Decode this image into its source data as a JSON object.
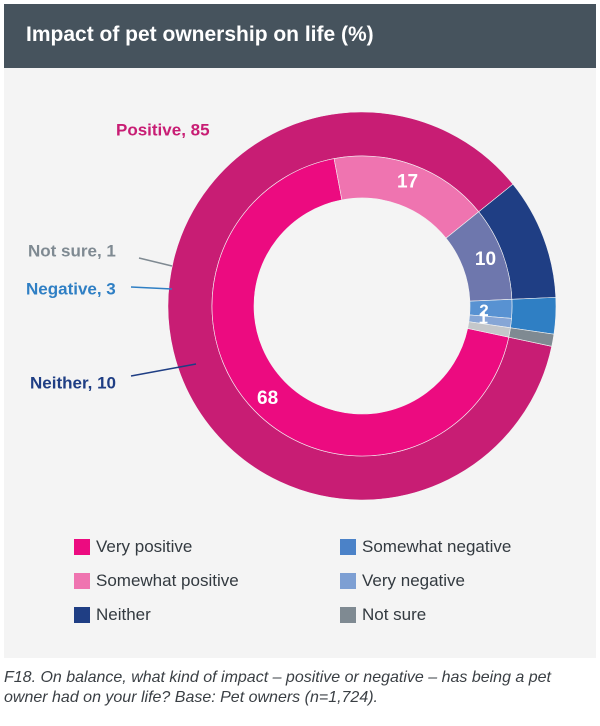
{
  "header": {
    "title": "Impact of pet ownership on life (%)"
  },
  "chart_data": {
    "type": "pie",
    "title": "Impact of pet ownership on life (%)",
    "outer_ring": [
      {
        "name": "Positive",
        "value": 85,
        "label": "Positive, 85",
        "color": "#c81d74"
      },
      {
        "name": "Neither",
        "value": 10,
        "label": "Neither, 10",
        "color": "#1f3e84"
      },
      {
        "name": "Negative",
        "value": 3,
        "label": "Negative, 3",
        "color": "#2f7fc4"
      },
      {
        "name": "Not sure",
        "value": 1,
        "label": "Not sure, 1",
        "color": "#7f8a92"
      }
    ],
    "inner_ring": [
      {
        "name": "Very positive",
        "value": 68,
        "label": "68",
        "color": "#ec0b80"
      },
      {
        "name": "Somewhat positive",
        "value": 17,
        "label": "17",
        "color": "#ef74b0"
      },
      {
        "name": "Neither",
        "value": 10,
        "label": "10",
        "color": "#6e77ad"
      },
      {
        "name": "Somewhat negative",
        "value": 2,
        "label": "2",
        "color": "#5892d2"
      },
      {
        "name": "Very negative",
        "value": 1,
        "label": "1",
        "color": "#86a6d6"
      },
      {
        "name": "Not sure",
        "value": 1,
        "label": "",
        "color": "#c4c7ca"
      }
    ],
    "legend": [
      {
        "label": "Very positive",
        "color": "#ec0b80"
      },
      {
        "label": "Somewhat positive",
        "color": "#ef74b0"
      },
      {
        "label": "Neither",
        "color": "#1f3e84"
      },
      {
        "label": "Somewhat negative",
        "color": "#4b82c8"
      },
      {
        "label": "Very negative",
        "color": "#7d9fd3"
      },
      {
        "label": "Not sure",
        "color": "#7f8a92"
      }
    ]
  },
  "caption": "F18. On balance, what kind of impact – positive or negative – has being a pet owner had on your life? Base: Pet owners (n=1,724)."
}
